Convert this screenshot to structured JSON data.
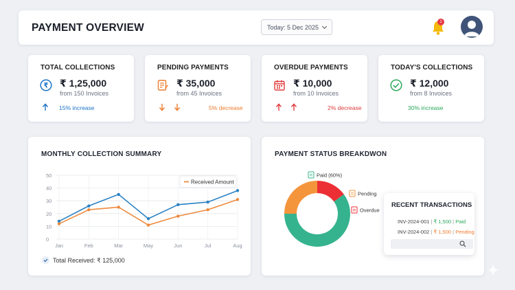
{
  "header": {
    "title": "PAYMENT OVERVIEW",
    "date_label": "Today: 5 Dec 2025",
    "notification_count": "1"
  },
  "stats": [
    {
      "title": "TOTAL COLLECTIONS",
      "amount": "₹ 1,25,000",
      "sub": "from 150 Invoices",
      "change": "15% increase",
      "color": "#1a73c8"
    },
    {
      "title": "PENDING PAYMENTS",
      "amount": "₹ 35,000",
      "sub": "from 45 Invoices",
      "change": "5% decrease",
      "color": "#ee7b2c"
    },
    {
      "title": "OVERDUE PAYMENTS",
      "amount": "₹ 10,000",
      "sub": "from 10 Invoices",
      "change": "2% decrease",
      "color": "#e03a3a"
    },
    {
      "title": "TODAY'S COLLECTIONS",
      "amount": "₹ 12,000",
      "sub": "from 8 Invoices",
      "change": "30% increase",
      "color": "#2aa85a"
    }
  ],
  "monthly": {
    "title": "MONTHLY COLLECTION SUMMARY",
    "total_received": "Total Received: ₹ 125,000"
  },
  "status": {
    "title": "PAYMENT STATUS BREAKDWON"
  },
  "recent": {
    "title": "RECENT TRANSACTIONS",
    "rows": [
      {
        "id": "INV-2024-001",
        "amount": "₹ 1,500",
        "status": "Paid",
        "status_color": "#2aa85a"
      },
      {
        "id": "INV-2024-002",
        "amount": "₹ 1,500",
        "status": "Pending",
        "status_color": "#ee7b2c"
      }
    ]
  },
  "chart_data": [
    {
      "type": "line",
      "title": "MONTHLY COLLECTION SUMMARY",
      "categories": [
        "Jan",
        "Feb",
        "Mar",
        "May",
        "Jun",
        "Jul",
        "Aug"
      ],
      "ylim": [
        0,
        50
      ],
      "yticks": [
        0,
        10,
        20,
        30,
        40,
        50
      ],
      "grid": true,
      "legend": "top-right",
      "series": [
        {
          "name": "",
          "values": [
            14,
            26,
            35,
            16,
            27,
            29,
            38
          ],
          "color": "#2a82c4"
        },
        {
          "name": "Received Amount",
          "values": [
            12,
            23,
            25,
            11,
            18,
            23,
            31
          ],
          "color": "#ee8a3c"
        }
      ]
    },
    {
      "type": "pie",
      "title": "PAYMENT STATUS BREAKDWON",
      "slices": [
        {
          "label": "Paid (60%)",
          "value": 60,
          "color": "#35b38e"
        },
        {
          "label": "Pending",
          "value": 25,
          "color": "#f4953c"
        },
        {
          "label": "Overdue",
          "value": 15,
          "color": "#ec2f35"
        }
      ]
    }
  ]
}
